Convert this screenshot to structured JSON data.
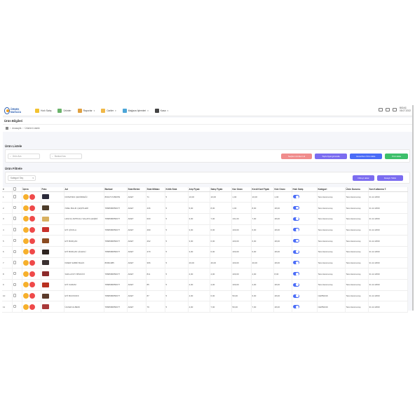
{
  "app": {
    "logo_text": "ÖRNEK MAĞAZA"
  },
  "nav": [
    {
      "label": "Hızlı Satış",
      "icon": "bag-icon",
      "color": "#f2c230",
      "caret": false
    },
    {
      "label": "Ürünler",
      "icon": "box-icon",
      "color": "#6bb36b",
      "caret": false
    },
    {
      "label": "Raporlar",
      "icon": "report-icon",
      "color": "#e0a040",
      "caret": true
    },
    {
      "label": "Cariler",
      "icon": "users-icon",
      "color": "#f0b848",
      "caret": true
    },
    {
      "label": "Mağaza İşlemleri",
      "icon": "store-icon",
      "color": "#4ca6d8",
      "caret": true
    },
    {
      "label": "Kasa",
      "icon": "cash-icon",
      "color": "#444444",
      "caret": true
    }
  ],
  "user": {
    "name": "BIDAŞ",
    "date": "08.07.2022"
  },
  "page": {
    "title": "Ürün Bilgileri"
  },
  "breadcrumb": {
    "home": "Anasayfa",
    "current": "Ürünleri Listele"
  },
  "list_panel": {
    "title": "Ürün Listele",
    "search1_placeholder": "Ürün Ara",
    "search2_placeholder": "Barkod Ara",
    "buttons": [
      {
        "label": "Seçilen ürünleri sil",
        "color": "#f08c8c"
      },
      {
        "label": "Toplu fiyat güncelle",
        "color": "#7b6cf0"
      },
      {
        "label": "Excel'den Ürün Ekle",
        "color": "#4a6cf7"
      },
      {
        "label": "Ürün Ekle",
        "color": "#3dbf6a"
      }
    ]
  },
  "filter_panel": {
    "title": "Ürün Filtrele",
    "select_value": "Kategori Seç",
    "btn_filter": "Filtreyi aktar",
    "btn_detail": "Detaylı Tablo"
  },
  "table": {
    "headers": [
      "#",
      "",
      "İşlem",
      "Foto",
      "Ad",
      "Barkod",
      "Stok Birimi",
      "Stok Miktarı",
      "Kritik Stok",
      "Alış Fiyatı",
      "Satış Fiyatı",
      "Kar Oranı",
      "Kredi Kart Fiyatı",
      "Kdv Oranı",
      "Hızlı Satış",
      "Kategori",
      "Ürün Durumu",
      "Son Kullanma T."
    ],
    "rows": [
      {
        "no": "1",
        "photo_color": "#2b2a3a",
        "name": "DOMATES ÇEKİRDEĞİ",
        "barcode": "8691717280053",
        "unit": "ADET",
        "stock": "71",
        "critical": "5",
        "buy": "10,00",
        "sell": "10,00",
        "margin": "1,00",
        "cc": "10,00",
        "kdv": "1,00",
        "cat": "Tanımlanmamış",
        "status": "Tanımlanmamış",
        "exp": "31.12.2099"
      },
      {
        "no": "2",
        "photo_color": "#4d3c2a",
        "name": "ÖZEL BALIK ÇEŞİTLERİ",
        "barcode": "7868686856077",
        "unit": "ADET",
        "stock": "436",
        "critical": "5",
        "buy": "5,00",
        "sell": "8,00",
        "margin": "1,00",
        "cc": "8,00",
        "kdv": "18,00",
        "cat": "Tanımlanmamış",
        "status": "Tanımlanmamış",
        "exp": "31.12.2099"
      },
      {
        "no": "3",
        "photo_color": "#d8b060",
        "name": "HAVUÇ ARTIKALI SALATA ÇEŞİDİ",
        "barcode": "7868686856077",
        "unit": "ADET",
        "stock": "600",
        "critical": "5",
        "buy": "3,00",
        "sell": "7,00",
        "margin": "131,00",
        "cc": "7,00",
        "kdv": "18,00",
        "cat": "Tanımlanmamış",
        "status": "Tanımlanmamış",
        "exp": "31.12.2099"
      },
      {
        "no": "4",
        "photo_color": "#c8302a",
        "name": "ETİ ÇİKOLA",
        "barcode": "7868686856077",
        "unit": "ADET",
        "stock": "499",
        "critical": "5",
        "buy": "3,00",
        "sell": "6,00",
        "margin": "100,00",
        "cc": "6,00",
        "kdv": "18,00",
        "cat": "Tanımlanmamış",
        "status": "Tanımlanmamış",
        "exp": "31.12.2099"
      },
      {
        "no": "5",
        "photo_color": "#8a4a20",
        "name": "ETİ BURÇAK",
        "barcode": "7868686856077",
        "unit": "ADET",
        "stock": "462",
        "critical": "5",
        "buy": "3,00",
        "sell": "6,00",
        "margin": "100,00",
        "cc": "6,00",
        "kdv": "18,00",
        "cat": "Tanımlanmamış",
        "status": "Tanımlanmamış",
        "exp": "31.12.2099"
      },
      {
        "no": "6",
        "photo_color": "#2e2420",
        "name": "ETİ BURÇAK ÇİLEKLİ",
        "barcode": "7868686856077",
        "unit": "ADET",
        "stock": "479",
        "critical": "5",
        "buy": "3,00",
        "sell": "6,00",
        "margin": "100,00",
        "cc": "6,00",
        "kdv": "18,00",
        "cat": "Tanımlanmamış",
        "status": "Tanımlanmamış",
        "exp": "31.12.2099"
      },
      {
        "no": "7",
        "photo_color": "#3a3030",
        "name": "KREM SABRİ BALİK",
        "barcode": "86991985",
        "unit": "ADET",
        "stock": "366",
        "critical": "5",
        "buy": "20,00",
        "sell": "40,00",
        "margin": "100,00",
        "cc": "40,00",
        "kdv": "18,00",
        "cat": "Tanımlanmamış",
        "status": "Tanımlanmamış",
        "exp": "31.12.2099"
      },
      {
        "no": "8",
        "photo_color": "#8c2a2a",
        "name": "SAKLAVOY BİSKÜVİ",
        "barcode": "7868686856077",
        "unit": "ADET",
        "stock": "811",
        "critical": "5",
        "buy": "2,00",
        "sell": "4,00",
        "margin": "100,00",
        "cc": "4,00",
        "kdv": "8,00",
        "cat": "Tanımlanmamış",
        "status": "Tanımlanmamış",
        "exp": "31.12.2099"
      },
      {
        "no": "9",
        "photo_color": "#b83020",
        "name": "ETİ KARAM",
        "barcode": "7868686856077",
        "unit": "ADET",
        "stock": "85",
        "critical": "5",
        "buy": "2,00",
        "sell": "4,00",
        "margin": "100,00",
        "cc": "4,00",
        "kdv": "18,00",
        "cat": "Tanımlanmamış",
        "status": "Tanımlanmamış",
        "exp": "31.12.2099"
      },
      {
        "no": "10",
        "photo_color": "#5a3a2a",
        "name": "ETİ BUONOFF",
        "barcode": "7868686856077",
        "unit": "ADET",
        "stock": "87",
        "critical": "5",
        "buy": "4,00",
        "sell": "6,00",
        "margin": "50,00",
        "cc": "6,00",
        "kdv": "18,00",
        "cat": "CEPBANK",
        "status": "Tanımlanmamış",
        "exp": "31.12.2099"
      },
      {
        "no": "11",
        "photo_color": "#a83838",
        "name": "ÜLKER ALBENİ",
        "barcode": "7868686856077",
        "unit": "ADET",
        "stock": "79",
        "critical": "5",
        "buy": "4,00",
        "sell": "7,00",
        "margin": "50,00",
        "cc": "7,00",
        "kdv": "18,00",
        "cat": "CEPBANK",
        "status": "Tanımlanmamış",
        "exp": "31.12.2099"
      }
    ]
  }
}
